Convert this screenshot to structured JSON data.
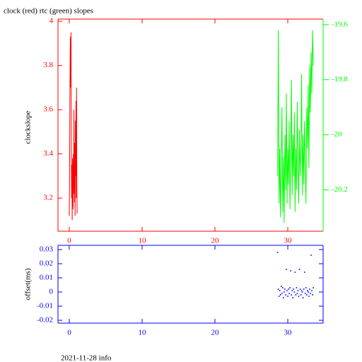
{
  "chart_data": [
    {
      "type": "line",
      "title": "clock (red) rtc (green) slopes",
      "ylabel": "clockslope",
      "xlim": [
        -1.55,
        34.85
      ],
      "xticks": [
        0,
        10,
        20,
        30
      ],
      "ylim": [
        3.05,
        4.01
      ],
      "yticks": [
        3.2,
        3.4,
        3.6,
        3.8,
        4
      ],
      "y2lim": [
        -20.35,
        -19.58
      ],
      "y2ticks": [
        -20.2,
        -20,
        -19.8,
        -19.6
      ],
      "series": [
        {
          "color": "#ff0000",
          "x": [
            0,
            0.04,
            0.08,
            0.12,
            0.16,
            0.2,
            0.24,
            0.28,
            0.32,
            0.36,
            0.4,
            0.44,
            0.48,
            0.52,
            0.56,
            0.6,
            0.64,
            0.68,
            0.72,
            0.76,
            0.8,
            0.84,
            0.88,
            0.92,
            0.96,
            1.0,
            1.04,
            1.08
          ],
          "values": [
            3.12,
            3.3,
            3.62,
            3.85,
            3.93,
            3.7,
            3.95,
            3.4,
            3.2,
            3.35,
            3.1,
            3.38,
            3.28,
            3.15,
            3.4,
            3.22,
            3.6,
            3.32,
            3.18,
            3.45,
            3.12,
            3.55,
            3.3,
            3.64,
            3.2,
            3.7,
            3.25,
            3.13
          ]
        },
        {
          "color": "#00ff00",
          "axis": "y2",
          "x": [
            28.6,
            28.7,
            28.8,
            28.9,
            29.0,
            29.1,
            29.2,
            29.3,
            29.4,
            29.5,
            29.6,
            29.7,
            29.8,
            29.9,
            30.0,
            30.1,
            30.2,
            30.3,
            30.4,
            30.5,
            30.6,
            30.7,
            30.8,
            30.9,
            31.0,
            31.1,
            31.2,
            31.3,
            31.4,
            31.5,
            31.6,
            31.7,
            31.8,
            31.9,
            32.0,
            32.1,
            32.2,
            32.3,
            32.4,
            32.5,
            32.6,
            32.7,
            32.8,
            32.9,
            33.0,
            33.1,
            33.2,
            33.3,
            33.4,
            33.5
          ],
          "values": [
            -20.15,
            -19.62,
            -20.25,
            -20.05,
            -20.3,
            -20.1,
            -19.9,
            -20.28,
            -20.08,
            -20.32,
            -20.0,
            -20.2,
            -19.85,
            -20.25,
            -20.05,
            -20.18,
            -19.95,
            -20.27,
            -20.1,
            -19.8,
            -20.22,
            -20.0,
            -20.15,
            -19.92,
            -20.28,
            -20.05,
            -20.2,
            -19.88,
            -20.12,
            -20.25,
            -19.98,
            -20.15,
            -20.05,
            -19.78,
            -20.22,
            -20.0,
            -20.18,
            -19.95,
            -20.1,
            -20.25,
            -19.9,
            -20.05,
            -19.82,
            -20.12,
            -19.75,
            -19.92,
            -19.7,
            -19.85,
            -19.62,
            -19.75
          ]
        }
      ]
    },
    {
      "type": "scatter",
      "ylabel": "offset(ms)",
      "xlim": [
        -1.55,
        34.85
      ],
      "xticks": [
        0,
        10,
        20,
        30
      ],
      "ylim": [
        -0.022,
        0.033
      ],
      "yticks": [
        -0.02,
        -0.01,
        0,
        0.01,
        0.02,
        0.03
      ],
      "series": [
        {
          "color": "#0000ff",
          "x": [
            28.6,
            28.7,
            28.8,
            28.9,
            29.0,
            29.1,
            29.2,
            29.3,
            29.4,
            29.5,
            29.6,
            29.7,
            29.8,
            29.9,
            30.0,
            30.1,
            30.2,
            30.3,
            30.4,
            30.5,
            30.6,
            30.7,
            30.8,
            30.9,
            31.0,
            31.1,
            31.2,
            31.3,
            31.4,
            31.5,
            31.6,
            31.7,
            31.8,
            31.9,
            32.0,
            32.1,
            32.2,
            32.3,
            32.4,
            32.5,
            32.6,
            32.7,
            32.8,
            32.9,
            33.0,
            33.1,
            33.2,
            33.3,
            33.4,
            33.5
          ],
          "values": [
            0.028,
            0.002,
            -0.003,
            0.001,
            -0.002,
            0.004,
            -0.001,
            0.003,
            -0.004,
            0.0,
            0.002,
            -0.002,
            0.016,
            0.001,
            -0.003,
            0.002,
            -0.001,
            0.003,
            0.015,
            -0.002,
            0.001,
            -0.004,
            0.002,
            0.0,
            0.014,
            -0.002,
            0.003,
            -0.001,
            0.001,
            -0.003,
            0.016,
            0.002,
            -0.002,
            0.001,
            0.0,
            -0.004,
            0.002,
            0.014,
            -0.001,
            0.003,
            -0.002,
            0.001,
            0.0,
            -0.003,
            0.002,
            -0.001,
            0.026,
            0.001,
            -0.002,
            0.003
          ]
        }
      ]
    }
  ],
  "footer": "2021-11-28 info"
}
